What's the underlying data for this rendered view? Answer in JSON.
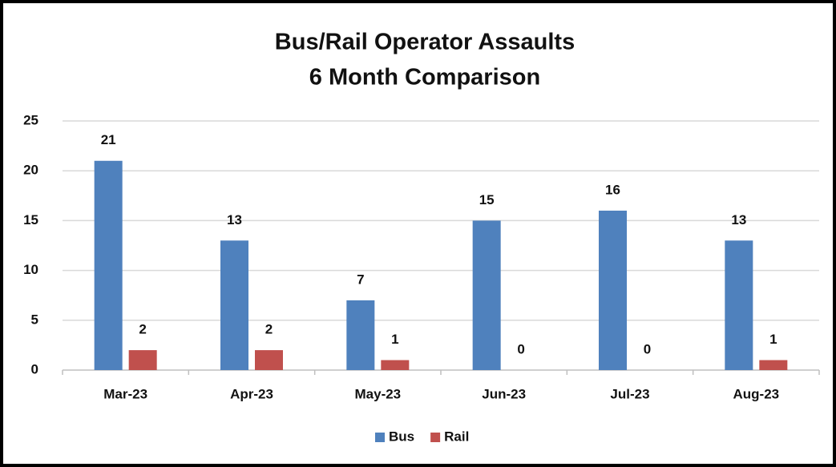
{
  "chart_data": {
    "type": "bar",
    "title": "Bus/Rail Operator Assaults",
    "subtitle": "6 Month Comparison",
    "categories": [
      "Mar-23",
      "Apr-23",
      "May-23",
      "Jun-23",
      "Jul-23",
      "Aug-23"
    ],
    "series": [
      {
        "name": "Bus",
        "color": "#4f81bd",
        "values": [
          21,
          13,
          7,
          15,
          16,
          13
        ]
      },
      {
        "name": "Rail",
        "color": "#c0504d",
        "values": [
          2,
          2,
          1,
          0,
          0,
          1
        ]
      }
    ],
    "ylim": [
      0,
      25
    ],
    "yticks": [
      0,
      5,
      10,
      15,
      20,
      25
    ],
    "grid": true,
    "legend": "bottom"
  }
}
